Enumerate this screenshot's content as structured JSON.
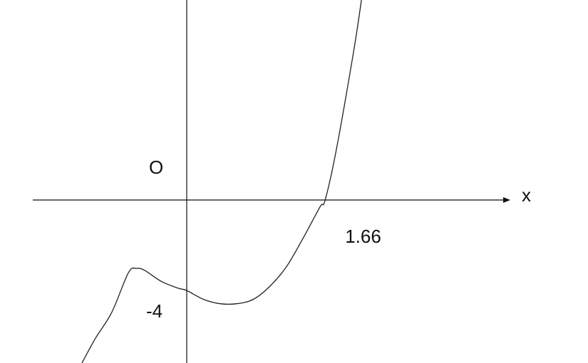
{
  "chart_data": {
    "type": "line",
    "title": "",
    "xlabel": "x",
    "ylabel": "",
    "origin_label": "O",
    "grid": false,
    "annotations": [
      {
        "text": "1.66",
        "x": 1.66,
        "y": 0,
        "kind": "x-intercept"
      },
      {
        "text": "-4",
        "x": 0,
        "y": -4,
        "kind": "y-intercept"
      }
    ],
    "xlim": [
      -1.8,
      3.8
    ],
    "ylim": [
      -7.7,
      9.2
    ],
    "series": [
      {
        "x": [
          -1.3,
          -1.1,
          -0.9,
          -0.7,
          -0.6,
          -0.5,
          -0.3,
          -0.1,
          0,
          0.2,
          0.4,
          0.6,
          0.8,
          1.0,
          1.2,
          1.4,
          1.6,
          1.66,
          1.8,
          2.0,
          2.1
        ],
        "y": [
          -7.7,
          -6.3,
          -5.1,
          -3.3,
          -3.1,
          -3.2,
          -3.7,
          -4.0,
          -4.1,
          -4.5,
          -4.7,
          -4.7,
          -4.5,
          -3.9,
          -3.0,
          -1.7,
          -0.3,
          0,
          2.4,
          6.7,
          9.2
        ]
      }
    ]
  }
}
